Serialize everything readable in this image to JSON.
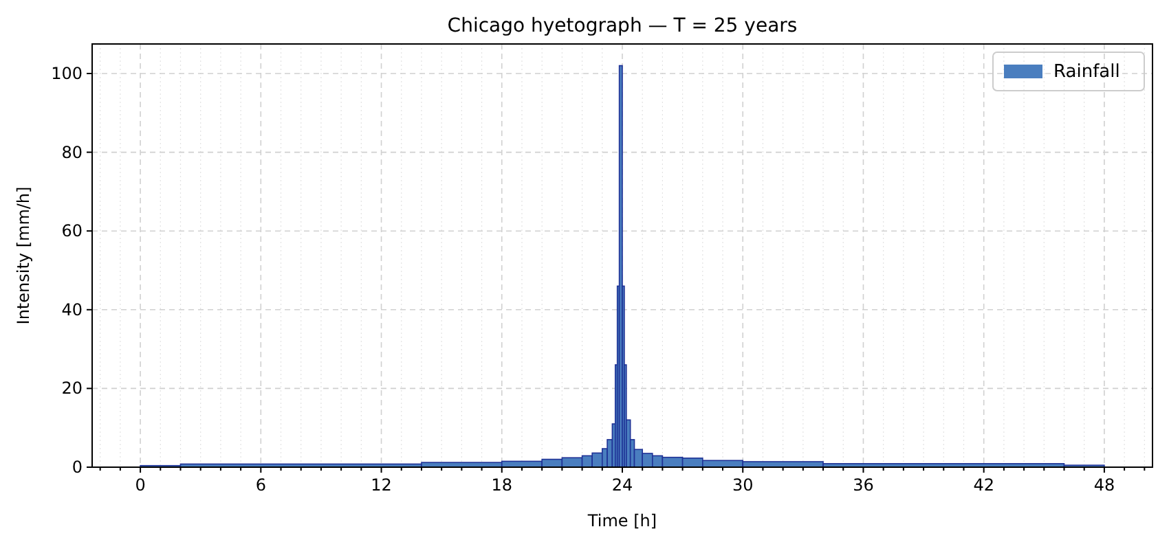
{
  "chart_data": {
    "type": "histogram",
    "title": "Chicago hyetograph — T = 25 years",
    "xlabel": "Time [h]",
    "ylabel": "Intensity [mm/h]",
    "bins": [
      0,
      2,
      14,
      18,
      20,
      21,
      22,
      22.5,
      23,
      23.25,
      23.5,
      23.65,
      23.75,
      23.85,
      24.0,
      24.1,
      24.2,
      24.4,
      24.6,
      25,
      25.5,
      26,
      27,
      28,
      30,
      34,
      46,
      48
    ],
    "series": [
      {
        "name": "Rainfall",
        "color": "#4a7ebf",
        "values": [
          0.4,
          0.8,
          1.2,
          1.5,
          2.0,
          2.4,
          2.9,
          3.6,
          4.7,
          7,
          11,
          26,
          46,
          102,
          46,
          26,
          12,
          7,
          4.5,
          3.5,
          2.9,
          2.5,
          2.3,
          1.7,
          1.4,
          0.9,
          0.5
        ]
      }
    ],
    "xlim": [
      -2.4,
      50.4
    ],
    "ylim": [
      0,
      107.5
    ],
    "xticks": [
      {
        "value": -2,
        "label": null
      },
      {
        "value": -1,
        "label": null
      },
      0,
      {
        "value": 1,
        "label": null
      },
      {
        "value": 2,
        "label": null
      },
      {
        "value": 3,
        "label": null
      },
      {
        "value": 4,
        "label": null
      },
      {
        "value": 5,
        "label": null
      },
      6,
      {
        "value": 7,
        "label": null
      },
      {
        "value": 8,
        "label": null
      },
      {
        "value": 9,
        "label": null
      },
      {
        "value": 10,
        "label": null
      },
      {
        "value": 11,
        "label": null
      },
      12,
      {
        "value": 13,
        "label": null
      },
      {
        "value": 14,
        "label": null
      },
      {
        "value": 15,
        "label": null
      },
      {
        "value": 16,
        "label": null
      },
      {
        "value": 17,
        "label": null
      },
      18,
      {
        "value": 19,
        "label": null
      },
      {
        "value": 20,
        "label": null
      },
      {
        "value": 21,
        "label": null
      },
      {
        "value": 22,
        "label": null
      },
      {
        "value": 23,
        "label": null
      },
      24,
      {
        "value": 25,
        "label": null
      },
      {
        "value": 26,
        "label": null
      },
      {
        "value": 27,
        "label": null
      },
      {
        "value": 28,
        "label": null
      },
      {
        "value": 29,
        "label": null
      },
      30,
      {
        "value": 31,
        "label": null
      },
      {
        "value": 32,
        "label": null
      },
      {
        "value": 33,
        "label": null
      },
      {
        "value": 34,
        "label": null
      },
      {
        "value": 35,
        "label": null
      },
      36,
      {
        "value": 37,
        "label": null
      },
      {
        "value": 38,
        "label": null
      },
      {
        "value": 39,
        "label": null
      },
      {
        "value": 40,
        "label": null
      },
      {
        "value": 41,
        "label": null
      },
      42,
      {
        "value": 43,
        "label": null
      },
      {
        "value": 44,
        "label": null
      },
      {
        "value": 45,
        "label": null
      },
      {
        "value": 46,
        "label": null
      },
      {
        "value": 47,
        "label": null
      },
      48,
      {
        "value": 49,
        "label": null
      },
      {
        "value": 50,
        "label": null
      }
    ],
    "yticks": [
      0,
      20,
      40,
      60,
      80,
      100
    ],
    "grid": true,
    "legend": "top right"
  }
}
